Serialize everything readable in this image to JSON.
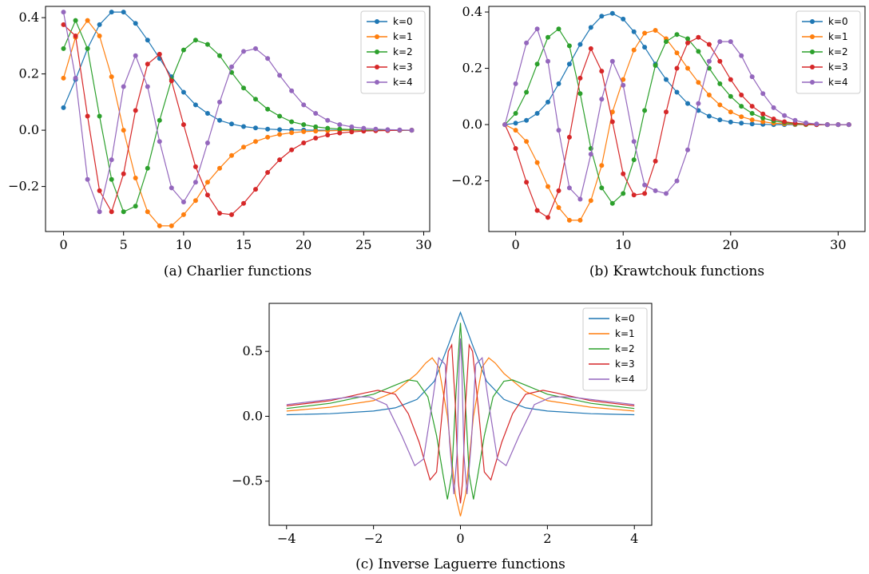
{
  "chart_data": [
    {
      "type": "line",
      "caption": "(a)  Charlier functions",
      "markers": true,
      "xlim": [
        -1.5,
        30.5
      ],
      "ylim": [
        -0.36,
        0.44
      ],
      "xticks": [
        0,
        5,
        10,
        15,
        20,
        25,
        30
      ],
      "xtick_labels": [
        "0",
        "5",
        "10",
        "15",
        "20",
        "25",
        "30"
      ],
      "yticks": [
        -0.2,
        0.0,
        0.2,
        0.4
      ],
      "ytick_labels": [
        "−0.2",
        "0.0",
        "0.2",
        "0.4"
      ],
      "legend": "top-right",
      "x": [
        0,
        1,
        2,
        3,
        4,
        5,
        6,
        7,
        8,
        9,
        10,
        11,
        12,
        13,
        14,
        15,
        16,
        17,
        18,
        19,
        20,
        21,
        22,
        23,
        24,
        25,
        26,
        27,
        28,
        29
      ],
      "series": [
        {
          "name": "k=0",
          "color": "#1f77b4",
          "values": [
            0.08,
            0.18,
            0.29,
            0.375,
            0.42,
            0.42,
            0.38,
            0.32,
            0.255,
            0.19,
            0.135,
            0.09,
            0.06,
            0.035,
            0.022,
            0.013,
            0.008,
            0.004,
            0.002,
            0.001,
            0.0005,
            0,
            0,
            0,
            0,
            0,
            0,
            0,
            0,
            0
          ]
        },
        {
          "name": "k=1",
          "color": "#ff7f0e",
          "values": [
            0.185,
            0.33,
            0.39,
            0.335,
            0.19,
            0.0,
            -0.17,
            -0.29,
            -0.34,
            -0.34,
            -0.3,
            -0.25,
            -0.185,
            -0.135,
            -0.09,
            -0.06,
            -0.04,
            -0.025,
            -0.015,
            -0.009,
            -0.005,
            -0.003,
            -0.002,
            -0.001,
            0,
            0,
            0,
            0,
            0,
            0
          ]
        },
        {
          "name": "k=2",
          "color": "#2ca02c",
          "values": [
            0.29,
            0.39,
            0.29,
            0.05,
            -0.175,
            -0.29,
            -0.27,
            -0.135,
            0.035,
            0.18,
            0.285,
            0.32,
            0.305,
            0.265,
            0.205,
            0.15,
            0.11,
            0.075,
            0.05,
            0.03,
            0.02,
            0.012,
            0.007,
            0.004,
            0.002,
            0.001,
            0,
            0,
            0,
            0
          ]
        },
        {
          "name": "k=3",
          "color": "#d62728",
          "values": [
            0.375,
            0.335,
            0.05,
            -0.215,
            -0.29,
            -0.155,
            0.07,
            0.235,
            0.27,
            0.175,
            0.02,
            -0.13,
            -0.23,
            -0.295,
            -0.3,
            -0.26,
            -0.21,
            -0.15,
            -0.105,
            -0.07,
            -0.045,
            -0.028,
            -0.017,
            -0.01,
            -0.006,
            -0.003,
            -0.002,
            -0.001,
            0,
            0
          ]
        },
        {
          "name": "k=4",
          "color": "#9467bd",
          "values": [
            0.42,
            0.185,
            -0.175,
            -0.29,
            -0.105,
            0.155,
            0.265,
            0.155,
            -0.04,
            -0.205,
            -0.255,
            -0.185,
            -0.045,
            0.1,
            0.225,
            0.28,
            0.29,
            0.255,
            0.195,
            0.14,
            0.09,
            0.06,
            0.035,
            0.02,
            0.012,
            0.007,
            0.004,
            0.002,
            0.001,
            0
          ]
        }
      ]
    },
    {
      "type": "line",
      "caption": "(b)  Krawtchouk functions",
      "markers": true,
      "xlim": [
        -2.5,
        32.5
      ],
      "ylim": [
        -0.38,
        0.42
      ],
      "xticks": [
        0,
        10,
        20,
        30
      ],
      "xtick_labels": [
        "0",
        "10",
        "20",
        "30"
      ],
      "yticks": [
        -0.2,
        0.0,
        0.2,
        0.4
      ],
      "ytick_labels": [
        "−0.2",
        "0.0",
        "0.2",
        "0.4"
      ],
      "legend": "top-right",
      "x": [
        -1,
        0,
        1,
        2,
        3,
        4,
        5,
        6,
        7,
        8,
        9,
        10,
        11,
        12,
        13,
        14,
        15,
        16,
        17,
        18,
        19,
        20,
        21,
        22,
        23,
        24,
        25,
        26,
        27,
        28,
        29,
        30,
        31
      ],
      "series": [
        {
          "name": "k=0",
          "color": "#1f77b4",
          "values": [
            0,
            0.005,
            0.015,
            0.04,
            0.08,
            0.145,
            0.215,
            0.285,
            0.345,
            0.385,
            0.395,
            0.375,
            0.33,
            0.275,
            0.215,
            0.16,
            0.115,
            0.075,
            0.05,
            0.03,
            0.017,
            0.009,
            0.005,
            0.002,
            0.001,
            0,
            0,
            0,
            0,
            0,
            0,
            0,
            0
          ]
        },
        {
          "name": "k=1",
          "color": "#ff7f0e",
          "values": [
            0,
            -0.02,
            -0.06,
            -0.135,
            -0.22,
            -0.295,
            -0.34,
            -0.34,
            -0.27,
            -0.145,
            0.045,
            0.16,
            0.265,
            0.325,
            0.335,
            0.305,
            0.255,
            0.2,
            0.15,
            0.105,
            0.07,
            0.045,
            0.028,
            0.017,
            0.01,
            0.005,
            0.003,
            0.001,
            0,
            0,
            0,
            0,
            0
          ]
        },
        {
          "name": "k=2",
          "color": "#2ca02c",
          "values": [
            0,
            0.04,
            0.115,
            0.215,
            0.31,
            0.34,
            0.28,
            0.11,
            -0.085,
            -0.225,
            -0.28,
            -0.245,
            -0.125,
            0.05,
            0.21,
            0.295,
            0.32,
            0.305,
            0.26,
            0.2,
            0.145,
            0.1,
            0.065,
            0.04,
            0.023,
            0.013,
            0.007,
            0.003,
            0.001,
            0,
            0,
            0,
            0
          ]
        },
        {
          "name": "k=3",
          "color": "#d62728",
          "values": [
            0,
            -0.085,
            -0.205,
            -0.305,
            -0.33,
            -0.235,
            -0.045,
            0.165,
            0.27,
            0.19,
            0.01,
            -0.175,
            -0.25,
            -0.245,
            -0.13,
            0.045,
            0.2,
            0.29,
            0.31,
            0.285,
            0.225,
            0.16,
            0.105,
            0.065,
            0.038,
            0.02,
            0.01,
            0.005,
            0.002,
            0,
            0,
            0,
            0
          ]
        },
        {
          "name": "k=4",
          "color": "#9467bd",
          "values": [
            0,
            0.145,
            0.29,
            0.34,
            0.225,
            -0.02,
            -0.225,
            -0.265,
            -0.105,
            0.09,
            0.225,
            0.14,
            -0.06,
            -0.215,
            -0.235,
            -0.245,
            -0.2,
            -0.09,
            0.075,
            0.225,
            0.295,
            0.295,
            0.245,
            0.17,
            0.11,
            0.06,
            0.032,
            0.015,
            0.006,
            0.002,
            0,
            0,
            0
          ]
        }
      ]
    },
    {
      "type": "line",
      "caption": "(c)  Inverse Laguerre functions",
      "markers": false,
      "xlim": [
        -4.4,
        4.4
      ],
      "ylim": [
        -0.84,
        0.87
      ],
      "xticks": [
        -4,
        -2,
        0,
        2,
        4
      ],
      "xtick_labels": [
        "−4",
        "−2",
        "0",
        "2",
        "4"
      ],
      "yticks": [
        -0.5,
        0.0,
        0.5
      ],
      "ytick_labels": [
        "−0.5",
        "0.0",
        "0.5"
      ],
      "legend": "top-right",
      "series": [
        {
          "name": "k=0",
          "color": "#1f77b4",
          "x": [
            -4,
            -3,
            -2,
            -1.5,
            -1,
            -0.6,
            -0.3,
            0,
            0.3,
            0.6,
            1,
            1.5,
            2,
            3,
            4
          ],
          "values": [
            0.012,
            0.02,
            0.04,
            0.065,
            0.13,
            0.27,
            0.53,
            0.8,
            0.53,
            0.27,
            0.13,
            0.065,
            0.04,
            0.02,
            0.012
          ]
        },
        {
          "name": "k=1",
          "color": "#ff7f0e",
          "x": [
            -4,
            -3,
            -2,
            -1.5,
            -1,
            -0.8,
            -0.65,
            -0.5,
            -0.3,
            -0.12,
            0,
            0.12,
            0.3,
            0.5,
            0.65,
            0.8,
            1,
            1.5,
            2,
            3,
            4
          ],
          "values": [
            0.04,
            0.07,
            0.12,
            0.19,
            0.33,
            0.41,
            0.45,
            0.38,
            0.0,
            -0.6,
            -0.77,
            -0.6,
            0.0,
            0.38,
            0.45,
            0.41,
            0.33,
            0.19,
            0.12,
            0.07,
            0.04
          ]
        },
        {
          "name": "k=2",
          "color": "#2ca02c",
          "x": [
            -4,
            -3,
            -2,
            -1.5,
            -1.2,
            -1,
            -0.75,
            -0.55,
            -0.4,
            -0.3,
            -0.2,
            -0.1,
            0,
            0.1,
            0.2,
            0.3,
            0.4,
            0.55,
            0.75,
            1,
            1.2,
            1.5,
            2,
            3,
            4
          ],
          "values": [
            0.06,
            0.1,
            0.17,
            0.24,
            0.28,
            0.27,
            0.15,
            -0.15,
            -0.45,
            -0.64,
            -0.45,
            0.2,
            0.72,
            0.2,
            -0.45,
            -0.64,
            -0.45,
            -0.15,
            0.15,
            0.27,
            0.28,
            0.24,
            0.17,
            0.1,
            0.06
          ]
        },
        {
          "name": "k=3",
          "color": "#d62728",
          "x": [
            -4,
            -3,
            -2.2,
            -1.9,
            -1.5,
            -1.2,
            -0.95,
            -0.7,
            -0.55,
            -0.4,
            -0.28,
            -0.2,
            -0.12,
            -0.05,
            0,
            0.05,
            0.12,
            0.2,
            0.28,
            0.4,
            0.55,
            0.7,
            0.95,
            1.2,
            1.5,
            1.9,
            2.2,
            3,
            4
          ],
          "values": [
            0.08,
            0.12,
            0.18,
            0.2,
            0.17,
            0.02,
            -0.2,
            -0.49,
            -0.43,
            0.1,
            0.5,
            0.55,
            0.1,
            -0.5,
            -0.67,
            -0.5,
            0.1,
            0.55,
            0.5,
            0.1,
            -0.43,
            -0.49,
            -0.2,
            0.02,
            0.17,
            0.2,
            0.18,
            0.12,
            0.08
          ]
        },
        {
          "name": "k=4",
          "color": "#9467bd",
          "x": [
            -4,
            -3,
            -2.5,
            -2.1,
            -1.7,
            -1.35,
            -1.05,
            -0.85,
            -0.65,
            -0.5,
            -0.35,
            -0.25,
            -0.15,
            -0.08,
            -0.03,
            0,
            0.03,
            0.08,
            0.15,
            0.25,
            0.35,
            0.5,
            0.65,
            0.85,
            1.05,
            1.35,
            1.7,
            2.1,
            2.5,
            3,
            4
          ],
          "values": [
            0.09,
            0.13,
            0.15,
            0.15,
            0.09,
            -0.15,
            -0.38,
            -0.33,
            0.1,
            0.45,
            0.4,
            -0.2,
            -0.6,
            -0.3,
            0.4,
            0.6,
            0.4,
            -0.3,
            -0.6,
            -0.2,
            0.4,
            0.45,
            0.1,
            -0.33,
            -0.38,
            -0.15,
            0.09,
            0.15,
            0.15,
            0.13,
            0.09
          ]
        }
      ]
    }
  ]
}
